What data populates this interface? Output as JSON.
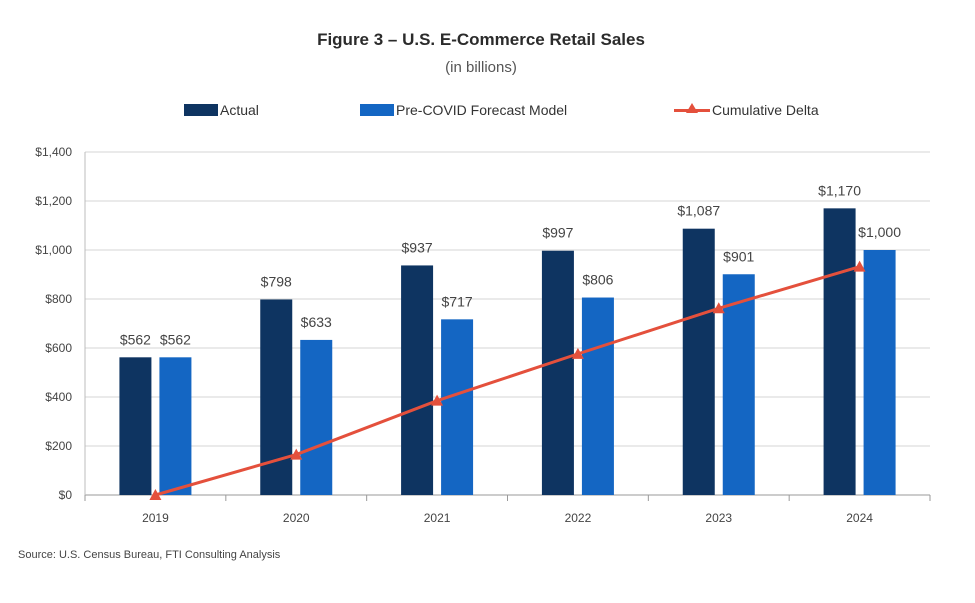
{
  "chart_data": {
    "type": "bar",
    "title": "Figure 3 – U.S. E-Commerce Retail Sales",
    "subtitle": "(in billions)",
    "categories": [
      "2019",
      "2020",
      "2021",
      "2022",
      "2023",
      "2024"
    ],
    "series": [
      {
        "name": "Actual",
        "type": "bar",
        "color": "#0e3461",
        "values": [
          562,
          798,
          937,
          997,
          1087,
          1170
        ],
        "labels": [
          "$562",
          "$798",
          "$937",
          "$997",
          "$1,087",
          "$1,170"
        ]
      },
      {
        "name": "Pre-COVID Forecast Model",
        "type": "bar",
        "color": "#1466c3",
        "values": [
          562,
          633,
          717,
          806,
          901,
          1000
        ],
        "labels": [
          "$562",
          "$633",
          "$717",
          "$806",
          "$901",
          "$1,000"
        ]
      },
      {
        "name": "Cumulative Delta",
        "type": "line",
        "color": "#e4503c",
        "values": [
          0,
          165,
          385,
          576,
          762,
          932
        ]
      }
    ],
    "yaxis": {
      "min": 0,
      "max": 1400,
      "step": 200,
      "tick_labels": [
        "$0",
        "$200",
        "$400",
        "$600",
        "$800",
        "$1,000",
        "$1,200",
        "$1,400"
      ]
    },
    "grid": true,
    "legend_position": "top"
  },
  "source": "Source: U.S. Census Bureau, FTI Consulting Analysis"
}
